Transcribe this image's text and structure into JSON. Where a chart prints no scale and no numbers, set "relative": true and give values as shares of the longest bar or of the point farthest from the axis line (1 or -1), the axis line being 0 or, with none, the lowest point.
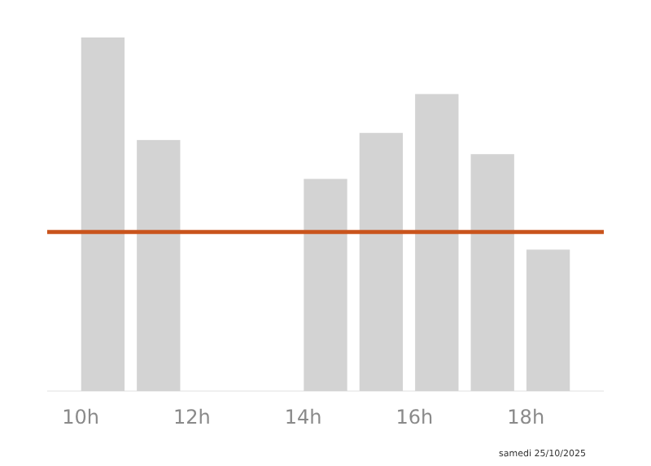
{
  "chart_data": {
    "type": "bar",
    "relative": true,
    "x": [
      10.4,
      11.4,
      14.4,
      15.4,
      16.4,
      17.4,
      18.4
    ],
    "values": [
      1,
      0.71,
      0.6,
      0.73,
      0.84,
      0.67,
      0.4
    ],
    "color": "#d3d3d3",
    "xlim": [
      9.4,
      19.4
    ],
    "xticks": [
      {
        "value": 10,
        "label": "10h"
      },
      {
        "value": 12,
        "label": "12h"
      },
      {
        "value": 14,
        "label": "14h"
      },
      {
        "value": 16,
        "label": "16h"
      },
      {
        "value": 18,
        "label": "18h"
      }
    ],
    "ref_lines": [
      {
        "axis": "y",
        "value": 0.45,
        "color": "#c9541c"
      }
    ],
    "annotations": [
      "samedi 25/10/2025"
    ]
  }
}
